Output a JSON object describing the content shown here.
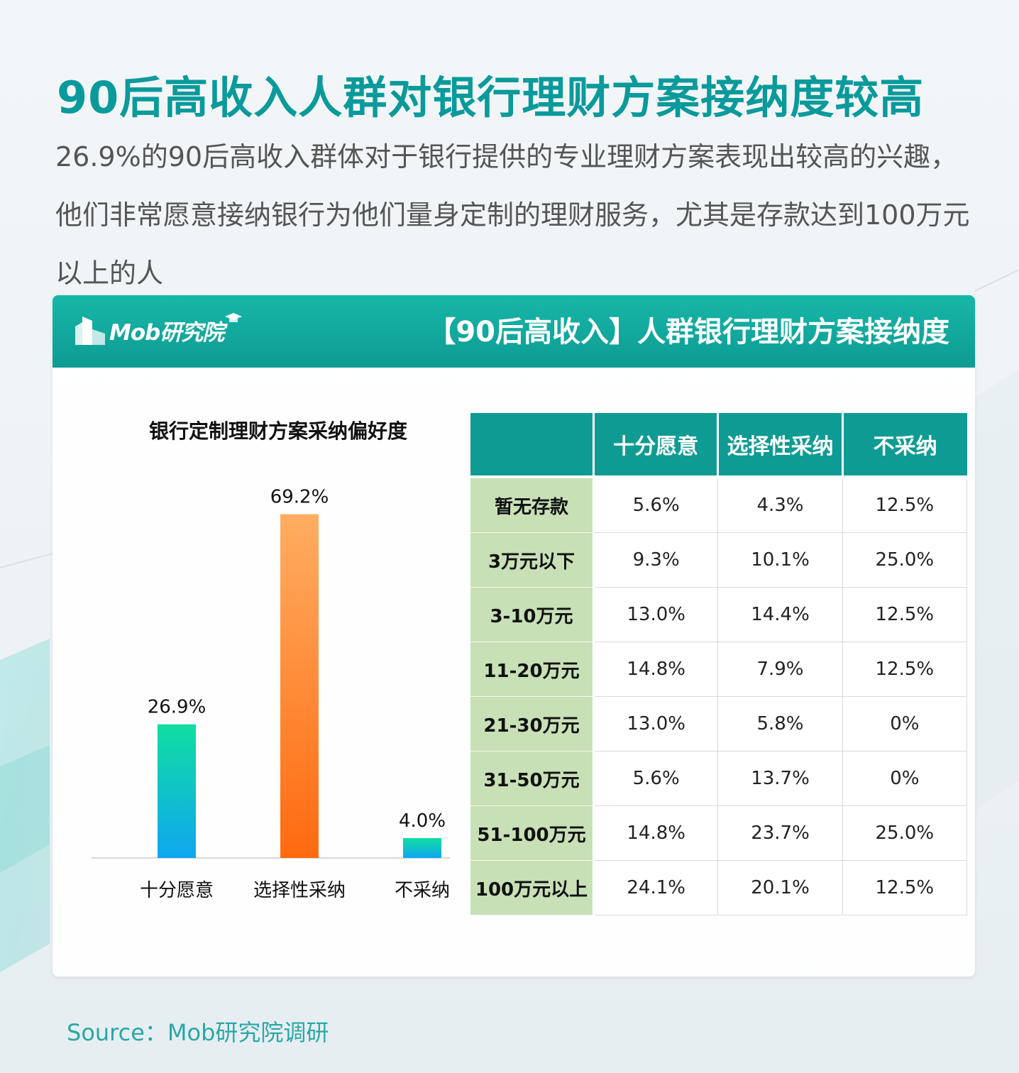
{
  "title": "90后高收入人群对银行理财方案接纳度较高",
  "subtitle": "26.9%的90后高收入群体对于银行提供的专业理财方案表现出较高的兴趣，他们非常愿意接纳银行为他们量身定制的理财服务，尤其是存款达到100万元以上的人",
  "card": {
    "logo_text": "Mob研究院",
    "header_title": "【90后高收入】人群银行理财方案接纳度"
  },
  "colors": {
    "accent": "#0e9b93",
    "title": "#0a9a9b",
    "bar_teal_top": "#10dea1",
    "bar_teal_bottom": "#0fa7f0",
    "bar_orange_top": "#ffad62",
    "bar_orange_bottom": "#ff6a10",
    "table_rowhead": "#c8e0b6"
  },
  "chart_data": [
    {
      "type": "bar",
      "title": "银行定制理财方案采纳偏好度",
      "categories": [
        "十分愿意",
        "选择性采纳",
        "不采纳"
      ],
      "values": [
        26.9,
        69.2,
        4.0
      ],
      "labels": [
        "26.9%",
        "69.2%",
        "4.0%"
      ],
      "ylim": [
        0,
        80
      ],
      "grid": false,
      "legend": "none"
    },
    {
      "type": "table",
      "columns": [
        "",
        "十分愿意",
        "选择性采纳",
        "不采纳"
      ],
      "rows": [
        [
          "暂无存款",
          "5.6%",
          "4.3%",
          "12.5%"
        ],
        [
          "3万元以下",
          "9.3%",
          "10.1%",
          "25.0%"
        ],
        [
          "3-10万元",
          "13.0%",
          "14.4%",
          "12.5%"
        ],
        [
          "11-20万元",
          "14.8%",
          "7.9%",
          "12.5%"
        ],
        [
          "21-30万元",
          "13.0%",
          "5.8%",
          "0%"
        ],
        [
          "31-50万元",
          "5.6%",
          "13.7%",
          "0%"
        ],
        [
          "51-100万元",
          "14.8%",
          "23.7%",
          "25.0%"
        ],
        [
          "100万元以上",
          "24.1%",
          "20.1%",
          "12.5%"
        ]
      ]
    }
  ],
  "source": "Source：Mob研究院调研"
}
